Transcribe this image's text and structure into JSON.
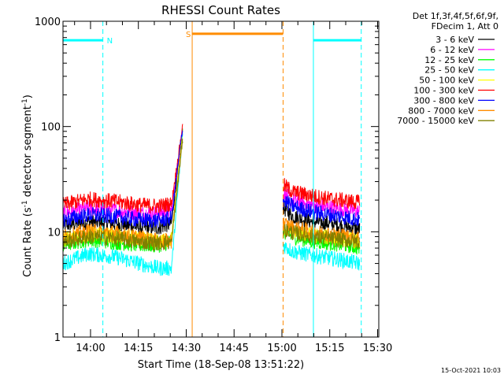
{
  "chart_data": {
    "type": "line",
    "title": "RHESSI Count Rates",
    "xlabel": "Start Time (18-Sep-08 13:51:22)",
    "ylabel_main": "Count Rate (s",
    "ylabel_sup1": "-1",
    "ylabel_mid": " detector segment",
    "ylabel_sup2": "-1",
    "ylabel_end": ")",
    "x_unit": "minutes after 13:51:22",
    "xlim": [
      0,
      99
    ],
    "ylim": [
      1,
      1000
    ],
    "yscale": "log",
    "x_ticks": [
      {
        "label": "14:00",
        "value": 8.63
      },
      {
        "label": "14:15",
        "value": 23.63
      },
      {
        "label": "14:30",
        "value": 38.63
      },
      {
        "label": "14:45",
        "value": 53.63
      },
      {
        "label": "15:00",
        "value": 68.63
      },
      {
        "label": "15:15",
        "value": 83.63
      },
      {
        "label": "15:30",
        "value": 98.63
      }
    ],
    "y_ticks": [
      {
        "label": "1",
        "value": 1
      },
      {
        "label": "10",
        "value": 10
      },
      {
        "label": "100",
        "value": 100
      },
      {
        "label": "1000",
        "value": 1000
      }
    ],
    "legend_header": [
      "Det 1f,3f,4f,5f,6f,9f,",
      "FDecim 1, Att 0"
    ],
    "legend_position": "right",
    "series": [
      {
        "name": "3 - 6 keV",
        "color": "#000000",
        "segments": [
          {
            "x": [
              0,
              8,
              16,
              24,
              30,
              34,
              37.5
            ],
            "y": [
              11.5,
              12.5,
              12,
              11,
              11,
              12,
              95
            ]
          },
          {
            "x": [
              69,
              72,
              78,
              84,
              90,
              93
            ],
            "y": [
              17,
              14,
              12.5,
              12,
              11,
              10.5
            ]
          }
        ]
      },
      {
        "name": "6 - 12 keV",
        "color": "#ff00ff",
        "segments": [
          {
            "x": [
              0,
              8,
              16,
              24,
              30,
              34,
              37.5
            ],
            "y": [
              15,
              16.5,
              16,
              15,
              15,
              16,
              100
            ]
          },
          {
            "x": [
              69,
              72,
              78,
              84,
              90,
              93
            ],
            "y": [
              23,
              20,
              18,
              17,
              16,
              15.5
            ]
          }
        ]
      },
      {
        "name": "12 - 25 keV",
        "color": "#00ff00",
        "segments": [
          {
            "x": [
              0,
              8,
              16,
              24,
              30,
              34,
              37.5
            ],
            "y": [
              7.5,
              8.5,
              8,
              7.5,
              7.5,
              8,
              90
            ]
          },
          {
            "x": [
              69,
              72,
              78,
              84,
              90,
              93
            ],
            "y": [
              10,
              9,
              8.2,
              7.8,
              7.4,
              7
            ]
          }
        ]
      },
      {
        "name": "25 - 50 keV",
        "color": "#00ffff",
        "segments": [
          {
            "x": [
              0,
              8,
              16,
              24,
              30,
              34,
              37.5
            ],
            "y": [
              5,
              6.2,
              5.8,
              5,
              4.5,
              4.5,
              85
            ]
          },
          {
            "x": [
              69,
              72,
              78,
              84,
              90,
              93
            ],
            "y": [
              7.5,
              6.5,
              6,
              5.6,
              5.2,
              5
            ]
          }
        ]
      },
      {
        "name": "50 - 100 keV",
        "color": "#ffff00",
        "segments": [
          {
            "x": [
              0,
              8,
              16,
              24,
              30,
              34,
              37.5
            ],
            "y": [
              8.5,
              9.5,
              9.2,
              8.5,
              8,
              8.5,
              88
            ]
          },
          {
            "x": [
              69,
              72,
              78,
              84,
              90,
              93
            ],
            "y": [
              11,
              10,
              9.3,
              8.8,
              8.4,
              8
            ]
          }
        ]
      },
      {
        "name": "100 - 300 keV",
        "color": "#ff0000",
        "segments": [
          {
            "x": [
              0,
              8,
              16,
              24,
              30,
              34,
              37.5
            ],
            "y": [
              18,
              20.5,
              19.5,
              18,
              17.5,
              18.5,
              100
            ]
          },
          {
            "x": [
              69,
              72,
              78,
              84,
              90,
              93
            ],
            "y": [
              28,
              24,
              22,
              20.5,
              19.5,
              19
            ]
          }
        ]
      },
      {
        "name": "300 - 800 keV",
        "color": "#0000ff",
        "segments": [
          {
            "x": [
              0,
              8,
              16,
              24,
              30,
              34,
              37.5
            ],
            "y": [
              13,
              14.5,
              14,
              13,
              12.8,
              13.5,
              97
            ]
          },
          {
            "x": [
              69,
              72,
              78,
              84,
              90,
              93
            ],
            "y": [
              20,
              17.5,
              15.5,
              14.5,
              13.5,
              13
            ]
          }
        ]
      },
      {
        "name": "800 - 7000 keV",
        "color": "#ff8c00",
        "segments": [
          {
            "x": [
              0,
              8,
              16,
              24,
              30,
              34,
              37.5
            ],
            "y": [
              9,
              10.2,
              9.8,
              8.8,
              8.2,
              8.2,
              80
            ]
          },
          {
            "x": [
              69,
              72,
              78,
              84,
              90,
              93
            ],
            "y": [
              12,
              11,
              10,
              9.5,
              9,
              8.8
            ]
          }
        ]
      },
      {
        "name": "7000 - 15000 keV",
        "color": "#808000",
        "segments": [
          {
            "x": [
              0,
              8,
              16,
              24,
              30,
              34,
              37.5
            ],
            "y": [
              8,
              9,
              8.7,
              8,
              7.8,
              8,
              75
            ]
          },
          {
            "x": [
              69,
              72,
              78,
              84,
              90,
              93
            ],
            "y": [
              10.5,
              9.8,
              9,
              8.6,
              8.2,
              8
            ]
          }
        ]
      }
    ],
    "annotations": [
      {
        "label": "N",
        "color": "#00ffff",
        "y": 660,
        "x_start": 0,
        "x_end": 12.5,
        "dash_x": 12.5,
        "solid_x": null
      },
      {
        "label": "S",
        "color": "#ff8c00",
        "y": 760,
        "x_start": 40.5,
        "x_end": 69,
        "dash_x": 69,
        "solid_x": 40.5
      },
      {
        "label": "",
        "color": "#00ffff",
        "y": 660,
        "x_start": 78.5,
        "x_end": 93.5,
        "dash_x": 93.5,
        "solid_x": 78.5
      }
    ]
  },
  "footer_timestamp": "15-Oct-2021 10:03",
  "style": {
    "axis_color": "#000000",
    "background": "#ffffff"
  }
}
